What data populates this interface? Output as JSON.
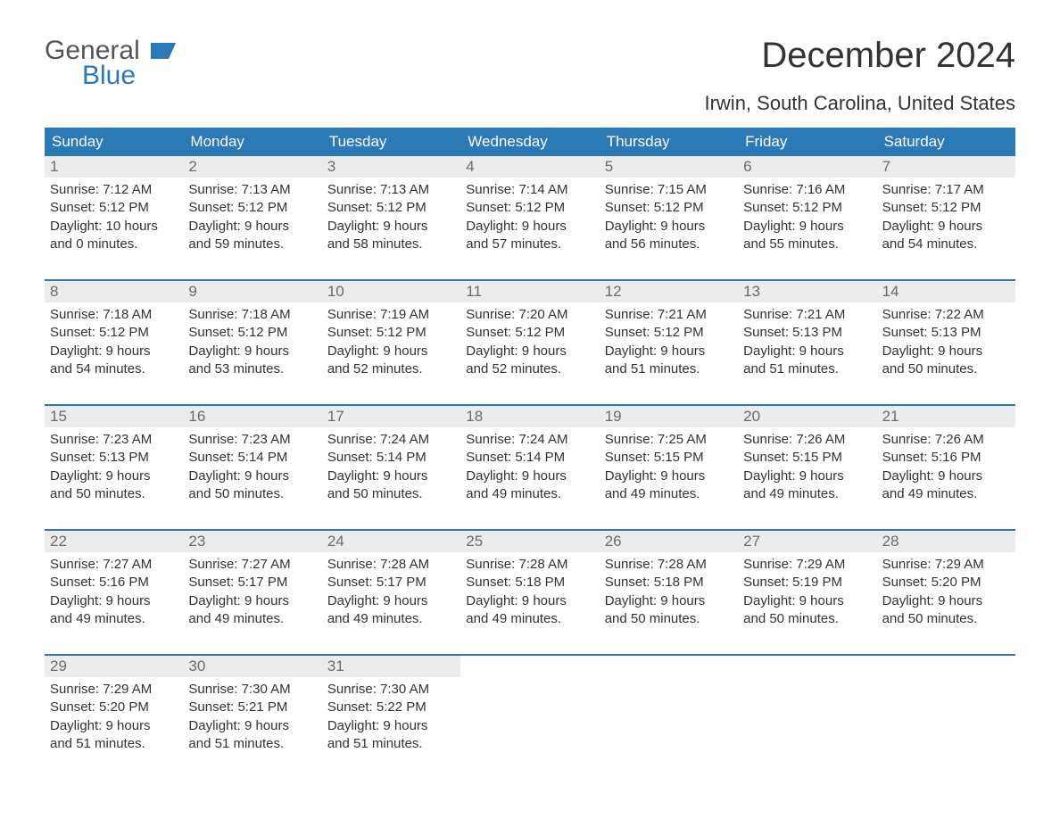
{
  "brand": {
    "line1": "General",
    "line2": "Blue"
  },
  "title": "December 2024",
  "location": "Irwin, South Carolina, United States",
  "colors": {
    "header_bg": "#2a7ab8",
    "header_text": "#ffffff",
    "daynum_bg": "#ececec",
    "daynum_text": "#6b6b6b",
    "body_text": "#333333",
    "week_border": "#2a7ab8"
  },
  "dow": [
    "Sunday",
    "Monday",
    "Tuesday",
    "Wednesday",
    "Thursday",
    "Friday",
    "Saturday"
  ],
  "days": [
    {
      "n": "1",
      "sunrise": "Sunrise: 7:12 AM",
      "sunset": "Sunset: 5:12 PM",
      "d1": "Daylight: 10 hours",
      "d2": "and 0 minutes."
    },
    {
      "n": "2",
      "sunrise": "Sunrise: 7:13 AM",
      "sunset": "Sunset: 5:12 PM",
      "d1": "Daylight: 9 hours",
      "d2": "and 59 minutes."
    },
    {
      "n": "3",
      "sunrise": "Sunrise: 7:13 AM",
      "sunset": "Sunset: 5:12 PM",
      "d1": "Daylight: 9 hours",
      "d2": "and 58 minutes."
    },
    {
      "n": "4",
      "sunrise": "Sunrise: 7:14 AM",
      "sunset": "Sunset: 5:12 PM",
      "d1": "Daylight: 9 hours",
      "d2": "and 57 minutes."
    },
    {
      "n": "5",
      "sunrise": "Sunrise: 7:15 AM",
      "sunset": "Sunset: 5:12 PM",
      "d1": "Daylight: 9 hours",
      "d2": "and 56 minutes."
    },
    {
      "n": "6",
      "sunrise": "Sunrise: 7:16 AM",
      "sunset": "Sunset: 5:12 PM",
      "d1": "Daylight: 9 hours",
      "d2": "and 55 minutes."
    },
    {
      "n": "7",
      "sunrise": "Sunrise: 7:17 AM",
      "sunset": "Sunset: 5:12 PM",
      "d1": "Daylight: 9 hours",
      "d2": "and 54 minutes."
    },
    {
      "n": "8",
      "sunrise": "Sunrise: 7:18 AM",
      "sunset": "Sunset: 5:12 PM",
      "d1": "Daylight: 9 hours",
      "d2": "and 54 minutes."
    },
    {
      "n": "9",
      "sunrise": "Sunrise: 7:18 AM",
      "sunset": "Sunset: 5:12 PM",
      "d1": "Daylight: 9 hours",
      "d2": "and 53 minutes."
    },
    {
      "n": "10",
      "sunrise": "Sunrise: 7:19 AM",
      "sunset": "Sunset: 5:12 PM",
      "d1": "Daylight: 9 hours",
      "d2": "and 52 minutes."
    },
    {
      "n": "11",
      "sunrise": "Sunrise: 7:20 AM",
      "sunset": "Sunset: 5:12 PM",
      "d1": "Daylight: 9 hours",
      "d2": "and 52 minutes."
    },
    {
      "n": "12",
      "sunrise": "Sunrise: 7:21 AM",
      "sunset": "Sunset: 5:12 PM",
      "d1": "Daylight: 9 hours",
      "d2": "and 51 minutes."
    },
    {
      "n": "13",
      "sunrise": "Sunrise: 7:21 AM",
      "sunset": "Sunset: 5:13 PM",
      "d1": "Daylight: 9 hours",
      "d2": "and 51 minutes."
    },
    {
      "n": "14",
      "sunrise": "Sunrise: 7:22 AM",
      "sunset": "Sunset: 5:13 PM",
      "d1": "Daylight: 9 hours",
      "d2": "and 50 minutes."
    },
    {
      "n": "15",
      "sunrise": "Sunrise: 7:23 AM",
      "sunset": "Sunset: 5:13 PM",
      "d1": "Daylight: 9 hours",
      "d2": "and 50 minutes."
    },
    {
      "n": "16",
      "sunrise": "Sunrise: 7:23 AM",
      "sunset": "Sunset: 5:14 PM",
      "d1": "Daylight: 9 hours",
      "d2": "and 50 minutes."
    },
    {
      "n": "17",
      "sunrise": "Sunrise: 7:24 AM",
      "sunset": "Sunset: 5:14 PM",
      "d1": "Daylight: 9 hours",
      "d2": "and 50 minutes."
    },
    {
      "n": "18",
      "sunrise": "Sunrise: 7:24 AM",
      "sunset": "Sunset: 5:14 PM",
      "d1": "Daylight: 9 hours",
      "d2": "and 49 minutes."
    },
    {
      "n": "19",
      "sunrise": "Sunrise: 7:25 AM",
      "sunset": "Sunset: 5:15 PM",
      "d1": "Daylight: 9 hours",
      "d2": "and 49 minutes."
    },
    {
      "n": "20",
      "sunrise": "Sunrise: 7:26 AM",
      "sunset": "Sunset: 5:15 PM",
      "d1": "Daylight: 9 hours",
      "d2": "and 49 minutes."
    },
    {
      "n": "21",
      "sunrise": "Sunrise: 7:26 AM",
      "sunset": "Sunset: 5:16 PM",
      "d1": "Daylight: 9 hours",
      "d2": "and 49 minutes."
    },
    {
      "n": "22",
      "sunrise": "Sunrise: 7:27 AM",
      "sunset": "Sunset: 5:16 PM",
      "d1": "Daylight: 9 hours",
      "d2": "and 49 minutes."
    },
    {
      "n": "23",
      "sunrise": "Sunrise: 7:27 AM",
      "sunset": "Sunset: 5:17 PM",
      "d1": "Daylight: 9 hours",
      "d2": "and 49 minutes."
    },
    {
      "n": "24",
      "sunrise": "Sunrise: 7:28 AM",
      "sunset": "Sunset: 5:17 PM",
      "d1": "Daylight: 9 hours",
      "d2": "and 49 minutes."
    },
    {
      "n": "25",
      "sunrise": "Sunrise: 7:28 AM",
      "sunset": "Sunset: 5:18 PM",
      "d1": "Daylight: 9 hours",
      "d2": "and 49 minutes."
    },
    {
      "n": "26",
      "sunrise": "Sunrise: 7:28 AM",
      "sunset": "Sunset: 5:18 PM",
      "d1": "Daylight: 9 hours",
      "d2": "and 50 minutes."
    },
    {
      "n": "27",
      "sunrise": "Sunrise: 7:29 AM",
      "sunset": "Sunset: 5:19 PM",
      "d1": "Daylight: 9 hours",
      "d2": "and 50 minutes."
    },
    {
      "n": "28",
      "sunrise": "Sunrise: 7:29 AM",
      "sunset": "Sunset: 5:20 PM",
      "d1": "Daylight: 9 hours",
      "d2": "and 50 minutes."
    },
    {
      "n": "29",
      "sunrise": "Sunrise: 7:29 AM",
      "sunset": "Sunset: 5:20 PM",
      "d1": "Daylight: 9 hours",
      "d2": "and 51 minutes."
    },
    {
      "n": "30",
      "sunrise": "Sunrise: 7:30 AM",
      "sunset": "Sunset: 5:21 PM",
      "d1": "Daylight: 9 hours",
      "d2": "and 51 minutes."
    },
    {
      "n": "31",
      "sunrise": "Sunrise: 7:30 AM",
      "sunset": "Sunset: 5:22 PM",
      "d1": "Daylight: 9 hours",
      "d2": "and 51 minutes."
    }
  ]
}
